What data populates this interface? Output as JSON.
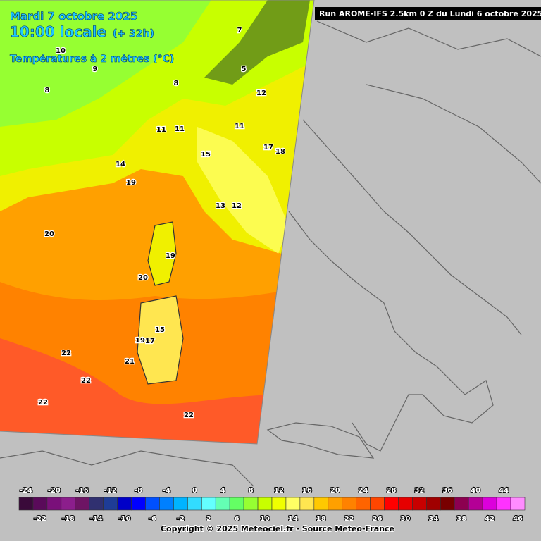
{
  "header": {
    "date": "Mardi 7 octobre 2025",
    "time": "10:00 locale",
    "lead": "(+ 32h)",
    "variable": "Températures à 2 mètres (°C)",
    "run": "Run AROME-IFS 2.5km 0 Z du Lundi 6 octobre 2025"
  },
  "map_labels": [
    20,
    20,
    22,
    22,
    22,
    21,
    22,
    19,
    19,
    18,
    17,
    19,
    17,
    12,
    11,
    14,
    11,
    15,
    10,
    8,
    9,
    7,
    5,
    8,
    11,
    13,
    12,
    15
  ],
  "legend": {
    "ticks": [
      -24,
      -22,
      -20,
      -18,
      -16,
      -14,
      -12,
      -10,
      -8,
      -6,
      -4,
      -2,
      0,
      2,
      4,
      6,
      8,
      10,
      12,
      14,
      16,
      18,
      20,
      22,
      24,
      26,
      28,
      30,
      32,
      34,
      36,
      38,
      40,
      42,
      44,
      46
    ],
    "colors": [
      "#3a0a3a",
      "#5a0a5a",
      "#7a107a",
      "#8c1e8c",
      "#6e1464",
      "#303070",
      "#1e3c96",
      "#0000c8",
      "#0000ff",
      "#0050ff",
      "#0080ff",
      "#00b4ff",
      "#32dcff",
      "#64ffff",
      "#64ffb4",
      "#64ff64",
      "#96ff32",
      "#c8ff00",
      "#f0ff00",
      "#ffff64",
      "#ffe650",
      "#ffc800",
      "#ffa000",
      "#ff8200",
      "#ff6400",
      "#ff4600",
      "#ff0000",
      "#e60000",
      "#c80000",
      "#a00000",
      "#780000",
      "#8c0050",
      "#b40096",
      "#dc00dc",
      "#ff32ff",
      "#ff8cff"
    ]
  },
  "footer": "Copyright © 2025 Meteociel.fr - Source Meteo-France"
}
